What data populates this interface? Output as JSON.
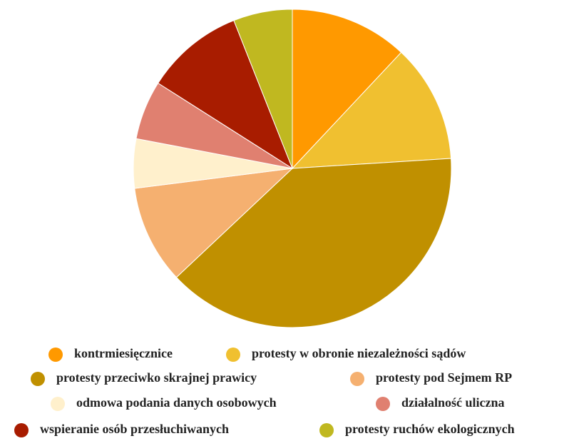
{
  "chart_data": {
    "type": "pie",
    "categories": [
      "kontrmiesięcznice",
      "protesty w obronie niezależności sądów",
      "protesty przeciwko skrajnej prawicy",
      "protesty pod Sejmem RP",
      "odmowa podania danych osobowych",
      "działalność uliczna",
      "wspieranie osób przesłuchiwanych",
      "protesty ruchów ekologicznych"
    ],
    "values": [
      12,
      12,
      39,
      10,
      5,
      6,
      10,
      6
    ],
    "colors": [
      "#ff9900",
      "#f0c030",
      "#c09000",
      "#f5b070",
      "#fff0cc",
      "#e08070",
      "#a81c00",
      "#c0b820"
    ],
    "legend": "bottom"
  }
}
